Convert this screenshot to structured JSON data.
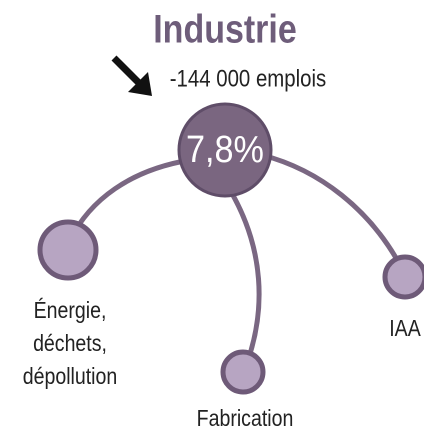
{
  "title": "Industrie",
  "subtitle": "-144 000 emplois",
  "center": {
    "label": "7,8%"
  },
  "nodes": [
    {
      "label": [
        "Énergie,",
        "déchets,",
        "dépollution"
      ]
    },
    {
      "label": [
        "Fabrication"
      ]
    },
    {
      "label": [
        "IAA"
      ]
    }
  ]
}
